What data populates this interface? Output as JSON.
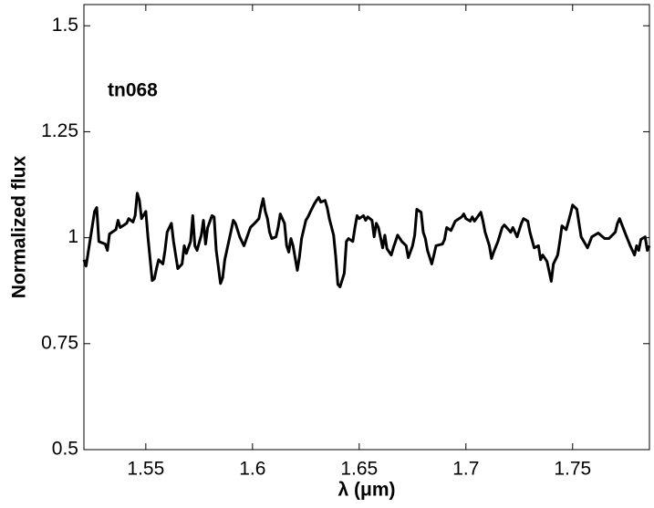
{
  "chart_data": {
    "type": "line",
    "xlabel": "λ (μm)",
    "ylabel": "Normalized flux",
    "annotation": "tn068",
    "xlim": [
      1.521,
      1.786
    ],
    "ylim": [
      0.5,
      1.55
    ],
    "xticks": [
      1.55,
      1.6,
      1.65,
      1.7,
      1.75
    ],
    "yticks": [
      0.5,
      0.75,
      1,
      1.25,
      1.5
    ],
    "grid": false,
    "series": [
      {
        "color": "#000000",
        "x": [
          1.521,
          1.522,
          1.526,
          1.527,
          1.528,
          1.531,
          1.532,
          1.533,
          1.536,
          1.537,
          1.538,
          1.541,
          1.542,
          1.544,
          1.545,
          1.546,
          1.547,
          1.548,
          1.55,
          1.551,
          1.553,
          1.554,
          1.555,
          1.556,
          1.558,
          1.559,
          1.56,
          1.562,
          1.563,
          1.565,
          1.567,
          1.568,
          1.569,
          1.571,
          1.572,
          1.573,
          1.574,
          1.576,
          1.577,
          1.578,
          1.579,
          1.581,
          1.582,
          1.583,
          1.585,
          1.586,
          1.587,
          1.59,
          1.591,
          1.592,
          1.594,
          1.596,
          1.599,
          1.601,
          1.603,
          1.604,
          1.605,
          1.606,
          1.607,
          1.608,
          1.609,
          1.611,
          1.612,
          1.613,
          1.615,
          1.616,
          1.617,
          1.618,
          1.619,
          1.621,
          1.622,
          1.623,
          1.625,
          1.626,
          1.627,
          1.629,
          1.63,
          1.631,
          1.632,
          1.634,
          1.635,
          1.636,
          1.638,
          1.639,
          1.64,
          1.641,
          1.643,
          1.644,
          1.645,
          1.647,
          1.648,
          1.649,
          1.65,
          1.652,
          1.653,
          1.654,
          1.656,
          1.657,
          1.658,
          1.659,
          1.661,
          1.662,
          1.663,
          1.665,
          1.666,
          1.668,
          1.67,
          1.672,
          1.673,
          1.675,
          1.676,
          1.677,
          1.679,
          1.68,
          1.681,
          1.682,
          1.684,
          1.685,
          1.686,
          1.689,
          1.69,
          1.691,
          1.693,
          1.695,
          1.698,
          1.699,
          1.7,
          1.702,
          1.703,
          1.704,
          1.707,
          1.708,
          1.709,
          1.711,
          1.712,
          1.713,
          1.715,
          1.717,
          1.718,
          1.721,
          1.722,
          1.724,
          1.726,
          1.727,
          1.729,
          1.73,
          1.732,
          1.734,
          1.735,
          1.736,
          1.738,
          1.74,
          1.741,
          1.743,
          1.744,
          1.745,
          1.747,
          1.749,
          1.75,
          1.752,
          1.753,
          1.754,
          1.757,
          1.759,
          1.762,
          1.765,
          1.767,
          1.77,
          1.771,
          1.772,
          1.775,
          1.777,
          1.779,
          1.78,
          1.781,
          1.782,
          1.784,
          1.785,
          1.786
        ],
        "values": [
          0.948,
          0.933,
          1.062,
          1.071,
          0.991,
          0.985,
          0.97,
          1.009,
          1.019,
          1.041,
          1.024,
          1.034,
          1.045,
          1.037,
          1.052,
          1.105,
          1.088,
          1.045,
          1.062,
          1.002,
          0.899,
          0.903,
          0.927,
          0.948,
          0.938,
          0.97,
          1.013,
          1.034,
          0.991,
          0.927,
          0.938,
          0.981,
          0.963,
          0.991,
          1.052,
          0.981,
          0.97,
          1.006,
          1.041,
          0.985,
          1.024,
          1.052,
          1.049,
          0.97,
          0.892,
          0.905,
          0.948,
          1.017,
          1.041,
          1.034,
          1.002,
          0.981,
          1.024,
          1.034,
          1.045,
          1.071,
          1.092,
          1.062,
          1.045,
          1.013,
          0.998,
          1.002,
          1.024,
          1.056,
          1.034,
          0.981,
          0.966,
          0.998,
          0.981,
          0.923,
          0.955,
          0.998,
          1.041,
          1.049,
          1.06,
          1.08,
          1.088,
          1.095,
          1.084,
          1.088,
          1.071,
          1.045,
          1.006,
          0.955,
          0.89,
          0.884,
          0.916,
          0.991,
          0.998,
          0.991,
          1.024,
          1.052,
          1.045,
          1.052,
          1.041,
          1.049,
          1.041,
          1.002,
          1.034,
          1.024,
          0.976,
          1.006,
          0.974,
          0.959,
          0.976,
          1.006,
          0.991,
          0.981,
          0.953,
          0.981,
          1.006,
          1.067,
          1.06,
          1.013,
          0.998,
          0.97,
          0.938,
          0.959,
          0.981,
          0.985,
          0.996,
          1.024,
          1.017,
          1.039,
          1.049,
          1.056,
          1.045,
          1.039,
          1.049,
          1.039,
          1.06,
          1.039,
          1.013,
          0.981,
          0.951,
          0.966,
          0.991,
          1.024,
          1.03,
          1.013,
          1.024,
          1.002,
          1.034,
          1.045,
          1.039,
          1.013,
          0.976,
          0.981,
          0.948,
          0.959,
          0.944,
          0.897,
          0.938,
          0.959,
          0.991,
          1.028,
          1.019,
          1.056,
          1.077,
          1.067,
          1.034,
          1.002,
          0.976,
          1.002,
          1.011,
          0.998,
          0.998,
          1.013,
          1.034,
          1.045,
          1.006,
          0.981,
          0.959,
          0.981,
          0.97,
          0.996,
          1.002,
          0.97,
          0.981
        ]
      }
    ]
  }
}
